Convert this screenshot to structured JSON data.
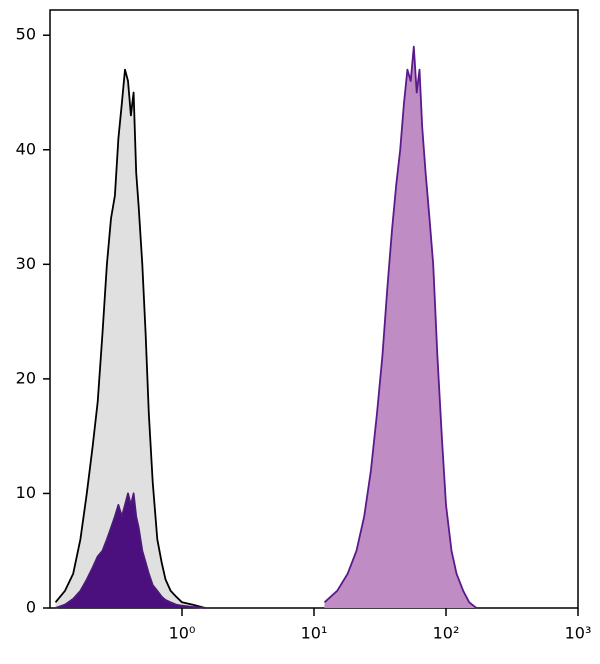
{
  "chart_data": {
    "type": "area",
    "xscale": "log",
    "xlim": [
      0.1,
      1000
    ],
    "ylim": [
      0,
      52.2
    ],
    "xticks": [
      {
        "value": 1,
        "label": "10⁰"
      },
      {
        "value": 10,
        "label": "10¹"
      },
      {
        "value": 100,
        "label": "10²"
      },
      {
        "value": 1000,
        "label": "10³"
      }
    ],
    "yticks": [
      0,
      10,
      20,
      30,
      40,
      50
    ],
    "series": [
      {
        "color": "#000000",
        "fill": "#e0e0e0",
        "x": [
          0.11,
          0.13,
          0.15,
          0.17,
          0.19,
          0.21,
          0.23,
          0.25,
          0.27,
          0.29,
          0.31,
          0.33,
          0.35,
          0.37,
          0.39,
          0.41,
          0.43,
          0.45,
          0.47,
          0.5,
          0.53,
          0.56,
          0.6,
          0.65,
          0.7,
          0.75,
          0.82,
          0.9,
          1.0,
          1.2,
          1.5
        ],
        "values": [
          0.5,
          1.5,
          3,
          6,
          10,
          14,
          18,
          24,
          30,
          34,
          36,
          41,
          44,
          47,
          46,
          43,
          45,
          38,
          35,
          30,
          24,
          17,
          11,
          6,
          4,
          2.5,
          1.5,
          1,
          0.5,
          0.3,
          0
        ]
      },
      {
        "color": "#4b1a7a",
        "fill": "#4b0f7e",
        "x": [
          0.11,
          0.13,
          0.15,
          0.17,
          0.19,
          0.21,
          0.23,
          0.25,
          0.27,
          0.29,
          0.31,
          0.33,
          0.35,
          0.37,
          0.39,
          0.41,
          0.43,
          0.45,
          0.47,
          0.5,
          0.53,
          0.56,
          0.6,
          0.65,
          0.7,
          0.75,
          0.82,
          0.9,
          1.0,
          1.2,
          1.5
        ],
        "values": [
          0,
          0.3,
          0.8,
          1.5,
          2.5,
          3.5,
          4.5,
          5,
          6,
          7,
          8,
          9,
          8,
          9,
          10,
          9,
          10,
          8,
          7,
          5,
          4,
          3,
          2,
          1.5,
          1,
          0.7,
          0.5,
          0.3,
          0.2,
          0.1,
          0
        ]
      },
      {
        "color": "#5a1a8c",
        "fill": "#c08cc4",
        "x": [
          12,
          15,
          18,
          21,
          24,
          27,
          30,
          33,
          36,
          39,
          42,
          45,
          48,
          51,
          54,
          57,
          60,
          63,
          66,
          70,
          75,
          80,
          86,
          93,
          100,
          110,
          120,
          135,
          150,
          170
        ],
        "values": [
          0.5,
          1.5,
          3,
          5,
          8,
          12,
          17,
          22,
          28,
          33,
          37,
          40,
          44,
          47,
          46,
          49,
          45,
          47,
          42,
          38,
          34,
          30,
          22,
          15,
          9,
          5,
          3,
          1.5,
          0.5,
          0
        ]
      }
    ]
  }
}
